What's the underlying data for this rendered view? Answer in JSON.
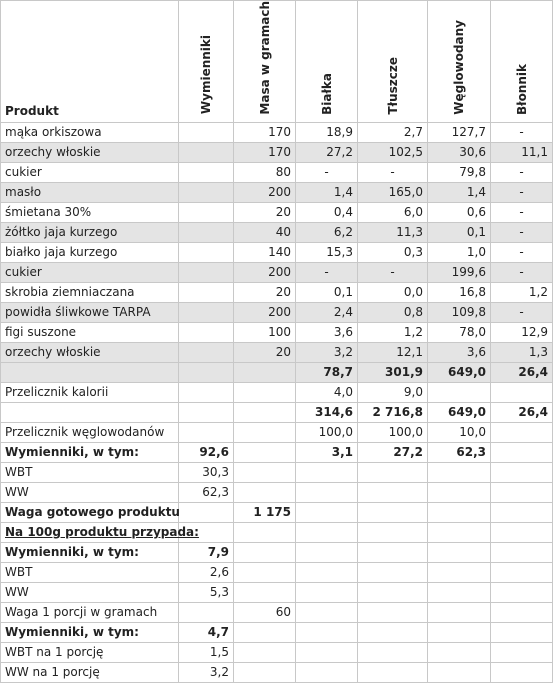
{
  "table": {
    "headers": [
      "Produkt",
      "Wymienniki",
      "Masa w gramach",
      "Białka",
      "Tłuszcze",
      "Węglowodany",
      "Błonnik"
    ],
    "rows": [
      [
        "mąka orkiszowa",
        null,
        "170",
        "18,9",
        "2,7",
        "127,7",
        "-"
      ],
      [
        "orzechy włoskie",
        null,
        "170",
        "27,2",
        "102,5",
        "30,6",
        "11,1"
      ],
      [
        "cukier",
        null,
        "80",
        "-",
        "-",
        "79,8",
        "-"
      ],
      [
        "masło",
        null,
        "200",
        "1,4",
        "165,0",
        "1,4",
        "-"
      ],
      [
        "śmietana 30%",
        null,
        "20",
        "0,4",
        "6,0",
        "0,6",
        "-"
      ],
      [
        "żółtko jaja kurzego",
        null,
        "40",
        "6,2",
        "11,3",
        "0,1",
        "-"
      ],
      [
        "białko jaja kurzego",
        null,
        "140",
        "15,3",
        "0,3",
        "1,0",
        "-"
      ],
      [
        "cukier",
        null,
        "200",
        "-",
        "-",
        "199,6",
        "-"
      ],
      [
        "skrobia ziemniaczana",
        null,
        "20",
        "0,1",
        "0,0",
        "16,8",
        "1,2"
      ],
      [
        "powidła śliwkowe TARPA",
        null,
        "200",
        "2,4",
        "0,8",
        "109,8",
        "-"
      ],
      [
        "figi suszone",
        null,
        "100",
        "3,6",
        "1,2",
        "78,0",
        "12,9"
      ],
      [
        "orzechy włoskie",
        null,
        "20",
        "3,2",
        "12,1",
        "3,6",
        "1,3"
      ],
      [
        null,
        null,
        null,
        "78,7",
        "301,9",
        "649,0",
        "26,4"
      ],
      [
        "Przelicznik kalorii",
        null,
        null,
        "4,0",
        "9,0",
        null,
        null
      ],
      [
        null,
        null,
        null,
        "314,6",
        "2 716,8",
        "649,0",
        "26,4"
      ],
      [
        "Przelicznik węglowodanów",
        null,
        null,
        "100,0",
        "100,0",
        "10,0",
        null
      ],
      [
        "Wymienniki, w tym:",
        "92,6",
        null,
        "3,1",
        "27,2",
        "62,3",
        null
      ],
      [
        "WBT",
        "30,3",
        null,
        null,
        null,
        null,
        null
      ],
      [
        "WW",
        "62,3",
        null,
        null,
        null,
        null,
        null
      ],
      [
        "Waga gotowego produktu",
        null,
        "1 175",
        null,
        null,
        null,
        null
      ],
      [
        "Na 100g produktu przypada:",
        null,
        null,
        null,
        null,
        null,
        null
      ],
      [
        "Wymienniki, w tym:",
        "7,9",
        null,
        null,
        null,
        null,
        null
      ],
      [
        "WBT",
        "2,6",
        null,
        null,
        null,
        null,
        null
      ],
      [
        "WW",
        "5,3",
        null,
        null,
        null,
        null,
        null
      ],
      [
        "Waga 1 porcji w gramach",
        null,
        "60",
        null,
        null,
        null,
        null
      ],
      [
        "Wymienniki, w tym:",
        "4,7",
        null,
        null,
        null,
        null,
        null
      ],
      [
        "WBT na 1 porcję",
        "1,5",
        null,
        null,
        null,
        null,
        null
      ],
      [
        "WW na 1 porcję",
        "3,2",
        null,
        null,
        null,
        null,
        null
      ]
    ]
  }
}
